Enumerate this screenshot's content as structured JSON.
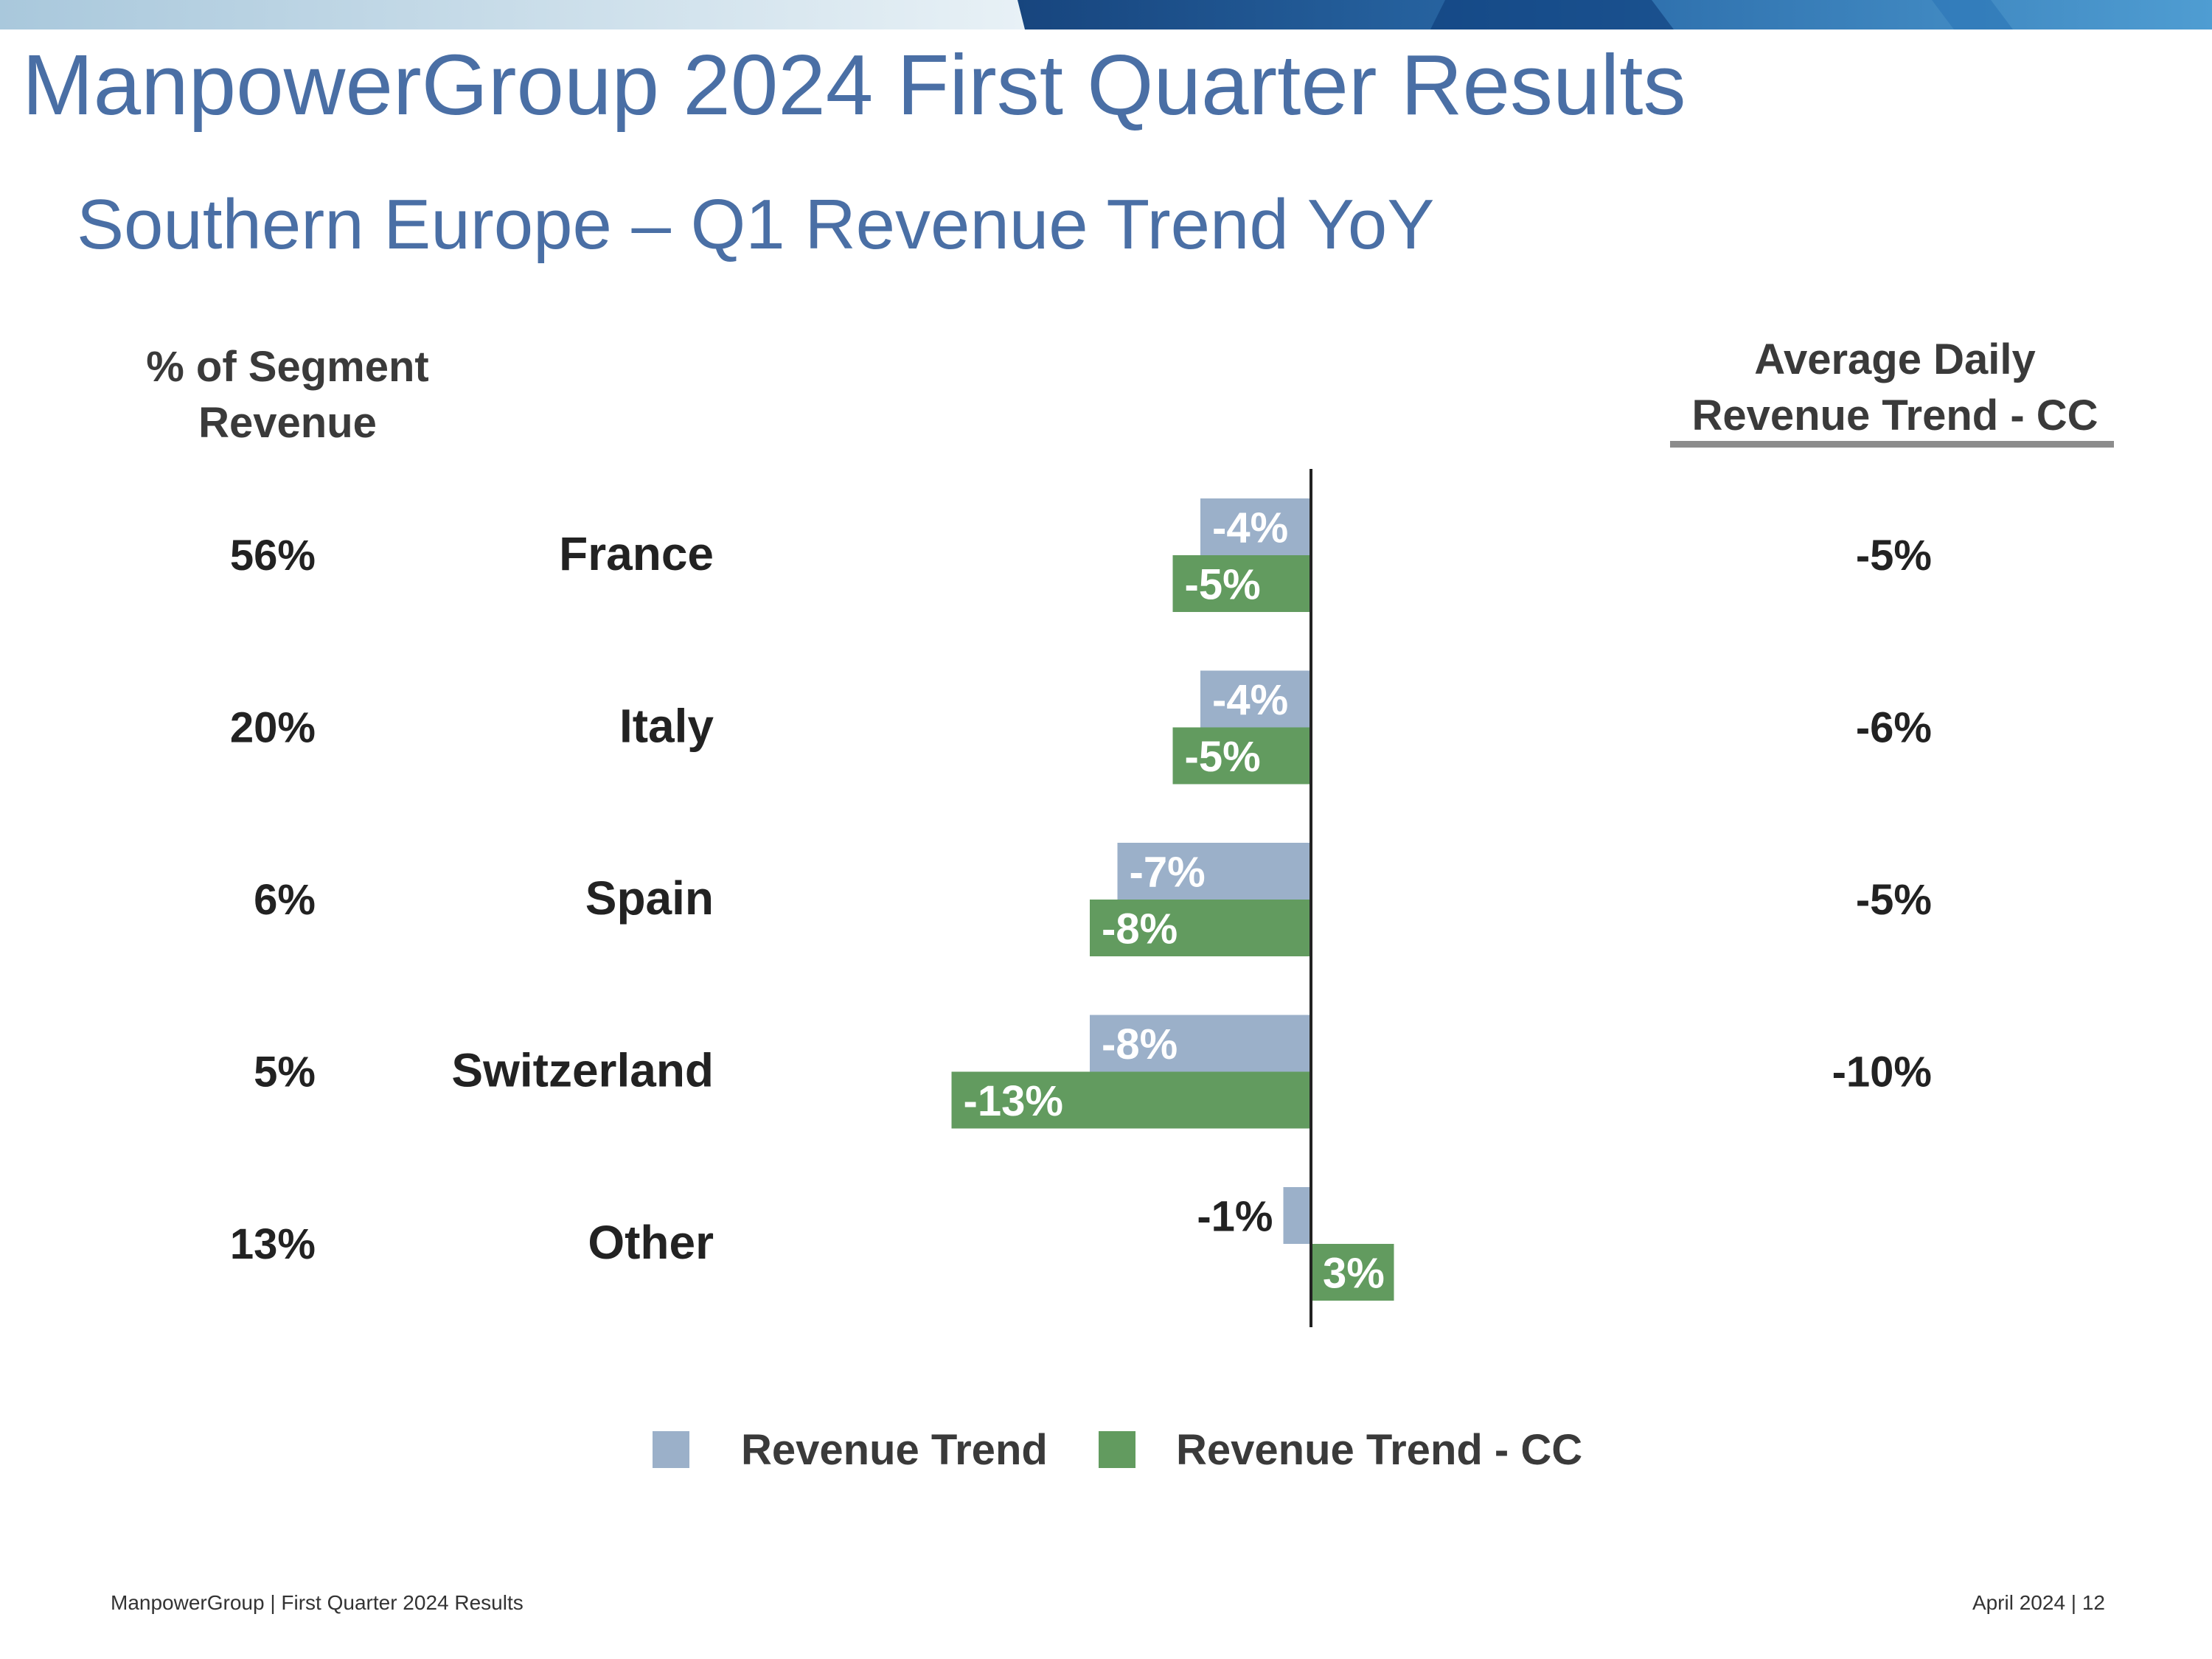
{
  "slide": {
    "title": "ManpowerGroup 2024 First Quarter Results",
    "subtitle": "Southern Europe – Q1 Revenue Trend YoY",
    "segment_header_line1": "% of Segment",
    "segment_header_line2": "Revenue",
    "adr_header_line1": "Average Daily",
    "adr_header_line2": "Revenue Trend - CC",
    "footer_left": "ManpowerGroup  |  First Quarter 2024 Results",
    "footer_right": "April 2024   |   12"
  },
  "colors": {
    "title": "#4a6fa5",
    "revenue_trend": "#9bb0c9",
    "revenue_trend_cc": "#629b5f",
    "text": "#222222"
  },
  "chart_data": {
    "type": "bar",
    "orientation": "horizontal",
    "categories": [
      "France",
      "Italy",
      "Spain",
      "Switzerland",
      "Other"
    ],
    "segment_share": [
      "56%",
      "20%",
      "6%",
      "5%",
      "13%"
    ],
    "series": [
      {
        "name": "Revenue Trend",
        "values": [
          -4,
          -4,
          -7,
          -8,
          -1
        ],
        "labels": [
          "-4%",
          "-4%",
          "-7%",
          "-8%",
          "-1%"
        ]
      },
      {
        "name": "Revenue Trend - CC",
        "values": [
          -5,
          -5,
          -8,
          -13,
          3
        ],
        "labels": [
          "-5%",
          "-5%",
          "-8%",
          "-13%",
          "3%"
        ]
      }
    ],
    "average_daily_revenue_trend_cc": [
      "-5%",
      "-6%",
      "-5%",
      "-10%",
      ""
    ],
    "unit": "%",
    "legend_position": "bottom",
    "grid": false
  }
}
